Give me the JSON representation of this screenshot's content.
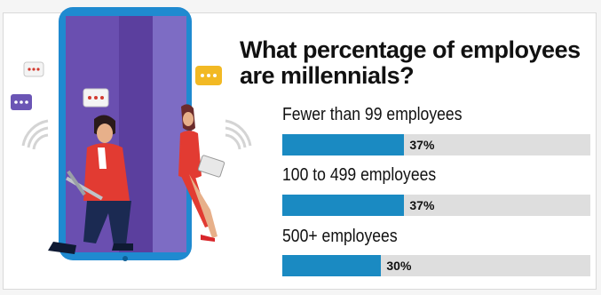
{
  "title": "What percentage of employees are millennials?",
  "colors": {
    "bar": "#1a8ac2",
    "track": "#dedede"
  },
  "chart_data": {
    "type": "bar",
    "orientation": "horizontal",
    "title": "What percentage of employees are millennials?",
    "categories": [
      "Fewer than 99 employees",
      "100 to 499 employees",
      "500+ employees"
    ],
    "values": [
      37,
      37,
      30
    ],
    "value_labels": [
      "37%",
      "37%",
      "30%"
    ],
    "xlim": [
      0,
      100
    ]
  }
}
